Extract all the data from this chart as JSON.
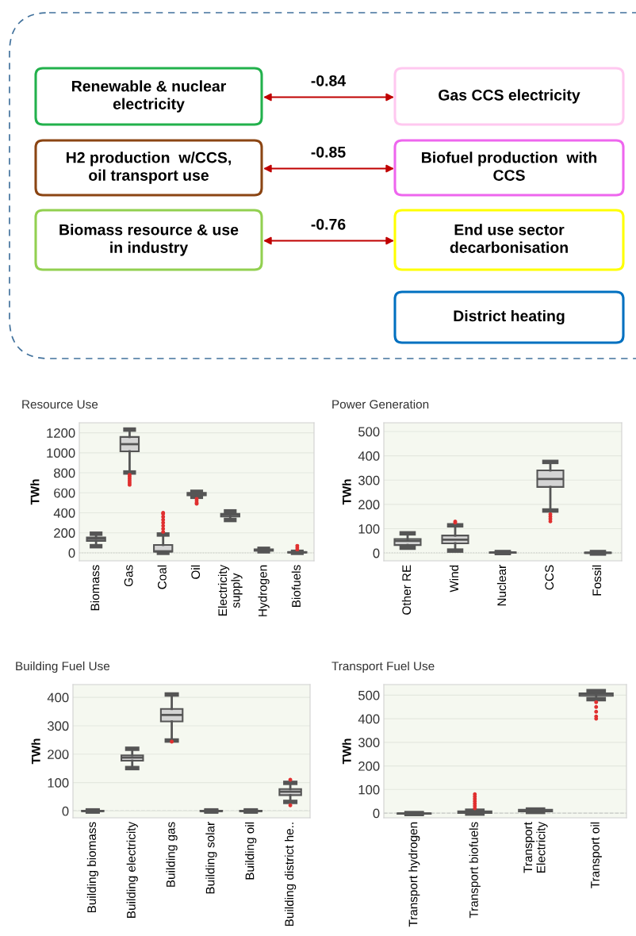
{
  "chart_data": [
    {
      "type": "other",
      "categories": [
        null,
        null,
        null
      ],
      "annotations": [
        "Renewable & nuclear\nelectricity",
        "Gas CCS electricity",
        "H2 production  w/CCS,\noil transport use",
        "Biofuel production  with\nCCS",
        "Biomass resource & use\nin industry",
        "End use sector\ndecarbonisation",
        "District heating"
      ],
      "values": [
        -0.84,
        -0.85,
        -0.76
      ],
      "data_labels": true
    },
    {
      "type": "box",
      "title": "Resource Use",
      "ylabel": "TWh",
      "categories": [
        "Biomass",
        "Gas",
        "Coal",
        "Oil",
        "Electricity\nsupply",
        "Hydrogen",
        "Biofuels"
      ],
      "boxes": [
        {
          "low": 66,
          "q1": 119,
          "median": 140,
          "q3": 154,
          "high": 191
        },
        {
          "low": 803,
          "q1": 1015,
          "median": 1086,
          "q3": 1158,
          "high": 1232,
          "outliers": [
            780,
            760,
            740,
            720,
            700,
            680
          ]
        },
        {
          "low": 0,
          "q1": 11,
          "median": 15,
          "q3": 79,
          "high": 183,
          "outliers": [
            210,
            240,
            270,
            300,
            330,
            360,
            390,
            400
          ]
        },
        {
          "low": 560,
          "q1": 575,
          "median": 590,
          "q3": 600,
          "high": 610,
          "outliers": [
            540,
            520,
            500,
            490
          ]
        },
        {
          "low": 328,
          "q1": 362,
          "median": 380,
          "q3": 390,
          "high": 414
        },
        {
          "low": 15,
          "q1": 20,
          "median": 28,
          "q3": 35,
          "high": 40
        },
        {
          "low": 0,
          "q1": 2,
          "median": 5,
          "q3": 8,
          "high": 10,
          "outliers": [
            30,
            50,
            70
          ]
        }
      ],
      "ylim": [
        -80,
        1300
      ],
      "yticks": [
        0,
        200,
        400,
        600,
        800,
        1000,
        1200
      ],
      "grid": "y",
      "ref_lines": [
        {
          "axis": "y",
          "value": 0,
          "line_style": "dotted"
        }
      ]
    },
    {
      "type": "box",
      "title": "Power Generation",
      "ylabel": "TWh",
      "categories": [
        "Other RE",
        "Wind",
        "Nuclear",
        "CCS",
        "Fossil"
      ],
      "boxes": [
        {
          "low": 22,
          "q1": 33,
          "median": 50,
          "q3": 58,
          "high": 81
        },
        {
          "low": 10,
          "q1": 40,
          "median": 55,
          "q3": 72,
          "high": 114,
          "outliers": [
            125,
            130
          ]
        },
        {
          "low": 0,
          "q1": 1,
          "median": 2,
          "q3": 3,
          "high": 4
        },
        {
          "low": 175,
          "q1": 272,
          "median": 305,
          "q3": 340,
          "high": 375,
          "outliers": [
            160,
            150,
            140,
            130
          ]
        },
        {
          "low": -2,
          "q1": 0,
          "median": 1,
          "q3": 2,
          "high": 4
        }
      ],
      "ylim": [
        -32,
        536
      ],
      "yticks": [
        0,
        100,
        200,
        300,
        400,
        500
      ],
      "grid": "y",
      "ref_lines": [
        {
          "axis": "y",
          "value": 0,
          "line_style": "dotted"
        }
      ]
    },
    {
      "type": "box",
      "title": "Building Fuel Use",
      "ylabel": "TWh",
      "categories": [
        "Building biomass",
        "Building electricity",
        "Building gas",
        "Building solar",
        "Building oil",
        "Building district he.."
      ],
      "boxes": [
        {
          "low": -2,
          "q1": -1,
          "median": 0,
          "q3": 1,
          "high": 2
        },
        {
          "low": 151,
          "q1": 177,
          "median": 188,
          "q3": 196,
          "high": 219
        },
        {
          "low": 248,
          "q1": 315,
          "median": 338,
          "q3": 359,
          "high": 410,
          "outliers": [
            244
          ]
        },
        {
          "low": -2,
          "q1": -1,
          "median": 0,
          "q3": 1,
          "high": 2
        },
        {
          "low": -2,
          "q1": -1,
          "median": 0,
          "q3": 1,
          "high": 2
        },
        {
          "low": 32,
          "q1": 56,
          "median": 68,
          "q3": 77,
          "high": 99,
          "outliers": [
            110,
            20
          ]
        }
      ],
      "ylim": [
        -24,
        445
      ],
      "yticks": [
        0,
        100,
        200,
        300,
        400
      ],
      "grid": "y",
      "ref_lines": [
        {
          "axis": "y",
          "value": 0,
          "line_style": "dashed"
        }
      ]
    },
    {
      "type": "box",
      "title": "Transport Fuel Use",
      "ylabel": "TWh",
      "categories": [
        "Transport hydrogen",
        "Transport biofuels",
        "Transport\nElectricity",
        "Transport oil"
      ],
      "boxes": [
        {
          "low": -4,
          "q1": -3,
          "median": -2,
          "q3": -1,
          "high": 0
        },
        {
          "low": -2,
          "q1": 0,
          "median": 3,
          "q3": 8,
          "high": 10,
          "outliers": [
            20,
            30,
            40,
            50,
            60,
            70,
            80
          ]
        },
        {
          "low": 5,
          "q1": 7,
          "median": 10,
          "q3": 14,
          "high": 15
        },
        {
          "low": 483,
          "q1": 497,
          "median": 505,
          "q3": 508,
          "high": 517,
          "outliers": [
            470,
            450,
            430,
            410,
            400
          ]
        }
      ],
      "ylim": [
        -20,
        545
      ],
      "yticks": [
        0,
        100,
        200,
        300,
        400,
        500
      ],
      "grid": "y",
      "ref_lines": [
        {
          "axis": "y",
          "value": 0,
          "line_style": "dashed"
        }
      ]
    }
  ]
}
